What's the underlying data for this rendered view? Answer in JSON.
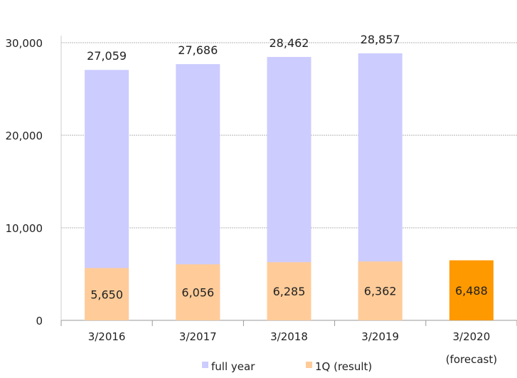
{
  "chart_data": {
    "type": "bar",
    "stacked": false,
    "title": "",
    "xlabel": "",
    "ylabel": "",
    "ylim": [
      0,
      30000
    ],
    "yticks": [
      0,
      10000,
      20000,
      30000
    ],
    "ytick_labels": [
      "0",
      "10,000",
      "20,000",
      "30,000"
    ],
    "grid": true,
    "categories": [
      {
        "line1": "3/2016",
        "line2": ""
      },
      {
        "line1": "3/2017",
        "line2": ""
      },
      {
        "line1": "3/2018",
        "line2": ""
      },
      {
        "line1": "3/2019",
        "line2": ""
      },
      {
        "line1": "3/2020",
        "line2": "(forecast)"
      }
    ],
    "series": [
      {
        "name": "full year",
        "color": "#ccccff",
        "values": [
          27059,
          27686,
          28462,
          28857,
          null
        ],
        "labels": [
          "27,059",
          "27,686",
          "28,462",
          "28,857",
          ""
        ]
      },
      {
        "name": "1Q (result)",
        "color": "#ffcc99",
        "forecast_color": "#ff9900",
        "values": [
          5650,
          6056,
          6285,
          6362,
          6488
        ],
        "labels": [
          "5,650",
          "6,056",
          "6,285",
          "6,362",
          "6,488"
        ],
        "forecast_index": 4
      }
    ],
    "legend": {
      "position": "bottom",
      "items": [
        {
          "label": "full year",
          "color": "#ccccff"
        },
        {
          "label": "1Q (result)",
          "color": "#ffcc99"
        }
      ]
    }
  }
}
